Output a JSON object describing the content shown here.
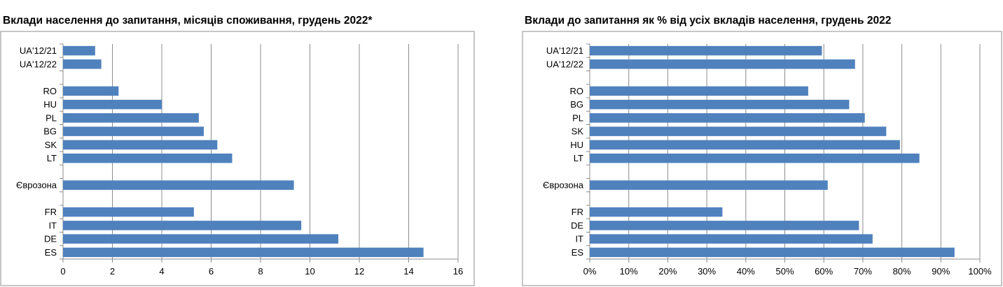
{
  "chart_data": [
    {
      "type": "bar",
      "orientation": "horizontal",
      "title": "Вклади населення до запитання,  місяців споживання, грудень 2022*",
      "xlabel": "",
      "ylabel": "",
      "xlim": [
        0,
        16
      ],
      "xticks": [
        "0",
        "2",
        "4",
        "6",
        "8",
        "10",
        "12",
        "14",
        "16"
      ],
      "grid": true,
      "legend": "none",
      "bar_color": "#4f81bd",
      "categories": [
        "UA'12/21",
        "UA'12/22",
        "",
        "RO",
        "HU",
        "PL",
        "BG",
        "SK",
        "LT",
        "",
        "Єврозона",
        "",
        "FR",
        "IT",
        "DE",
        "ES"
      ],
      "values": [
        1.3,
        1.55,
        null,
        2.25,
        4.0,
        5.5,
        5.7,
        6.25,
        6.85,
        null,
        9.35,
        null,
        5.3,
        9.65,
        11.15,
        14.6
      ]
    },
    {
      "type": "bar",
      "orientation": "horizontal",
      "title": "Вклади до запитання  як % від усіх вкладів населення, грудень 2022",
      "xlabel": "",
      "ylabel": "",
      "xlim": [
        0,
        100
      ],
      "xticks": [
        "0%",
        "10%",
        "20%",
        "30%",
        "40%",
        "50%",
        "60%",
        "70%",
        "80%",
        "90%",
        "100%"
      ],
      "grid": true,
      "legend": "none",
      "bar_color": "#4f81bd",
      "categories": [
        "UA'12/21",
        "UA'12/22",
        "",
        "RO",
        "BG",
        "PL",
        "SK",
        "HU",
        "LT",
        "",
        "Єврозона",
        "",
        "FR",
        "DE",
        "IT",
        "ES"
      ],
      "values": [
        59.5,
        68,
        null,
        56,
        66.5,
        70.5,
        76,
        79.5,
        84.5,
        null,
        61,
        null,
        34,
        69,
        72.5,
        93.5
      ]
    }
  ]
}
